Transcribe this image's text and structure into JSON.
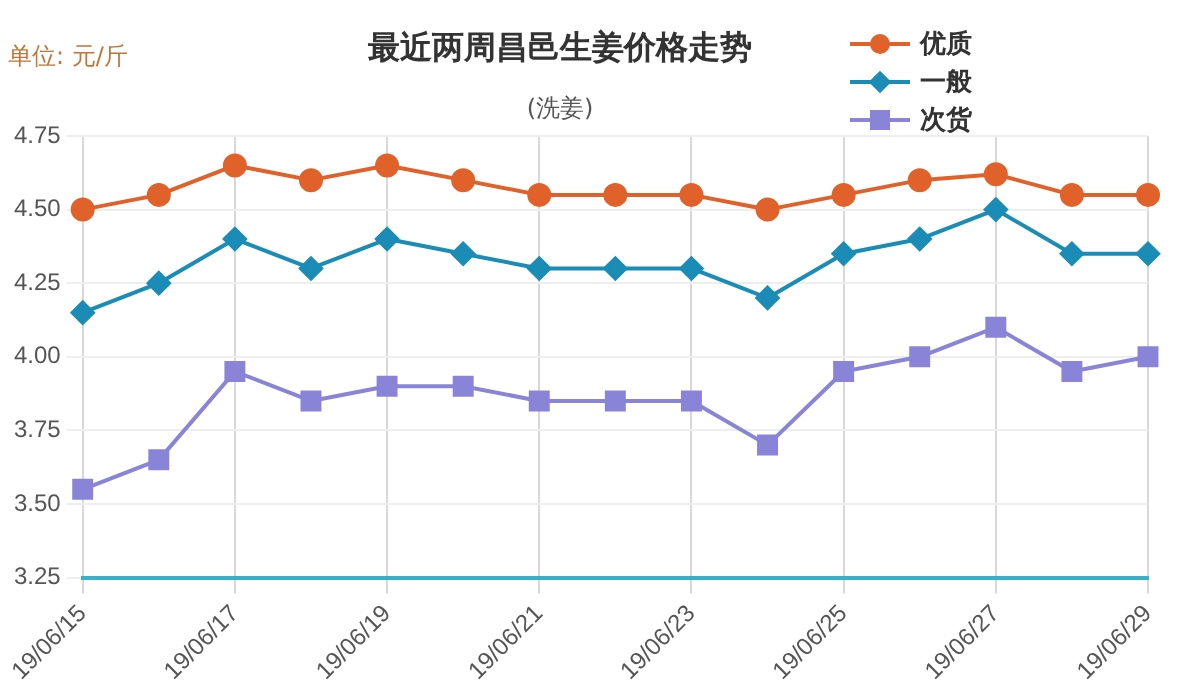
{
  "chart_data": {
    "type": "line",
    "title": "最近两周昌邑生姜价格走势",
    "subtitle": "(洗姜)",
    "ylabel": "单位: 元/斤",
    "categories": [
      "19/06/15",
      null,
      "19/06/17",
      null,
      "19/06/19",
      null,
      "19/06/21",
      null,
      "19/06/23",
      null,
      "19/06/25",
      null,
      "19/06/27",
      null,
      "19/06/29"
    ],
    "series": [
      {
        "name": "优质",
        "color": "#e0622a",
        "marker": "circle",
        "values": [
          4.5,
          4.55,
          4.65,
          4.6,
          4.65,
          4.6,
          4.55,
          4.55,
          4.55,
          4.5,
          4.55,
          4.6,
          4.62,
          4.55,
          4.55
        ]
      },
      {
        "name": "一般",
        "color": "#1a8cb5",
        "marker": "diamond",
        "values": [
          4.15,
          4.25,
          4.4,
          4.3,
          4.4,
          4.35,
          4.3,
          4.3,
          4.3,
          4.2,
          4.35,
          4.4,
          4.5,
          4.35,
          4.35
        ]
      },
      {
        "name": "次货",
        "color": "#8a84d8",
        "marker": "square",
        "values": [
          3.55,
          3.65,
          3.95,
          3.85,
          3.9,
          3.9,
          3.85,
          3.85,
          3.85,
          3.7,
          3.95,
          4.0,
          4.1,
          3.95,
          4.0
        ]
      }
    ],
    "ylim": [
      3.25,
      4.75
    ],
    "yticks": [
      {
        "value": 3.25,
        "label": "3.25"
      },
      {
        "value": 3.5,
        "label": "3.50"
      },
      {
        "value": 3.75,
        "label": "3.75"
      },
      {
        "value": 4,
        "label": "4.00"
      },
      {
        "value": 4.25,
        "label": "4.25"
      },
      {
        "value": 4.5,
        "label": "4.50"
      },
      {
        "value": 4.75,
        "label": "4.75"
      }
    ],
    "grid": true,
    "legend": "top right",
    "line_style": "solid"
  }
}
